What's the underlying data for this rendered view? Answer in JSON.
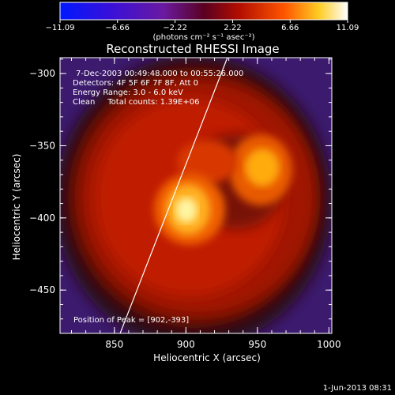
{
  "chart_data": {
    "type": "heatmap",
    "title": "Reconstructed RHESSI Image",
    "xlabel": "Heliocentric X (arcsec)",
    "ylabel": "Heliocentric Y (arcsec)",
    "xlim": [
      812,
      1002
    ],
    "ylim": [
      -480,
      -289
    ],
    "x_ticks": [
      850,
      900,
      950,
      1000
    ],
    "y_ticks": [
      -450,
      -400,
      -350,
      -300
    ],
    "x_tick_labels": [
      "850",
      "900",
      "950",
      "1000"
    ],
    "y_tick_labels": [
      "−450",
      "−400",
      "−350",
      "−300"
    ],
    "colorbar": {
      "range": [
        -11.09,
        11.09
      ],
      "ticks": [
        -11.09,
        -6.66,
        -2.22,
        2.22,
        6.66,
        11.09
      ],
      "tick_labels": [
        "−11.09",
        "−6.66",
        "−2.22",
        "2.22",
        "6.66",
        "11.09"
      ],
      "label": "(photons cm⁻² s⁻¹ asec⁻²)",
      "colormap": "blue-purple-red-yellow-white"
    },
    "annotations": [
      "7-Dec-2003 00:49:48.000 to 00:55:26.000",
      "Detectors: 4F 5F 6F 7F 8F, Att 0",
      "Energy Range: 3.0 - 6.0 keV",
      "Clean     Total counts: 1.39E+06"
    ],
    "peak_label": "Position of Peak = [902,-393]",
    "peak": [
      902,
      -393
    ],
    "limb_line": [
      [
        854,
        -480
      ],
      [
        929,
        -289
      ]
    ],
    "sources": [
      {
        "x": 902,
        "y": -394,
        "value": 11.09
      },
      {
        "x": 950,
        "y": -370,
        "value": 8.5
      },
      {
        "x": 900,
        "y": -345,
        "value": 5.5
      }
    ],
    "timestamp": "1-Jun-2013 08:31"
  }
}
